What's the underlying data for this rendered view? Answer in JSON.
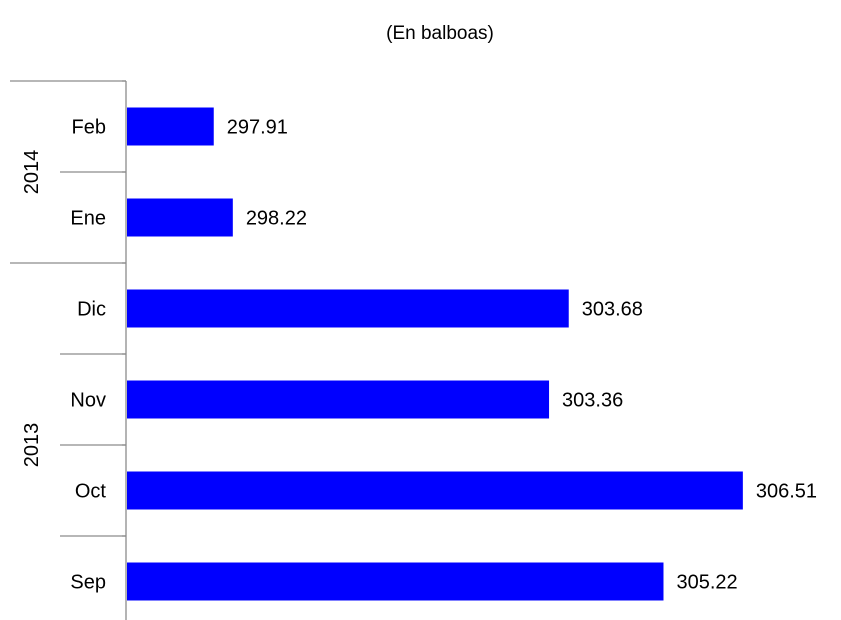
{
  "chart_data": {
    "type": "bar",
    "orientation": "horizontal",
    "subtitle": "(En balboas)",
    "title": "",
    "xlabel": "",
    "ylabel": "",
    "categories": [
      "Feb",
      "Ene",
      "Dic",
      "Nov",
      "Oct",
      "Sep"
    ],
    "groups": [
      {
        "label": "2014",
        "categories": [
          "Feb",
          "Ene"
        ]
      },
      {
        "label": "2013",
        "categories": [
          "Dic",
          "Nov",
          "Oct",
          "Sep"
        ]
      }
    ],
    "values": [
      297.91,
      298.22,
      303.68,
      303.36,
      306.51,
      305.22
    ],
    "value_labels": [
      "297.91",
      "298.22",
      "303.68",
      "303.36",
      "306.51",
      "305.22"
    ],
    "xlim": [
      296.5,
      307.0
    ],
    "grid": false,
    "legend": "none",
    "bar_color": "#0000ff"
  }
}
